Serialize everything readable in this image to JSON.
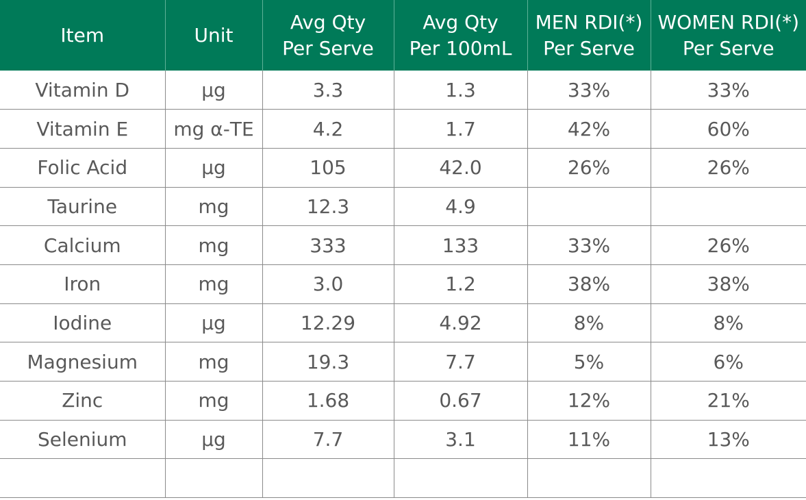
{
  "table": {
    "headers": [
      [
        "Item"
      ],
      [
        "Unit"
      ],
      [
        "Avg Qty",
        "Per Serve"
      ],
      [
        "Avg Qty",
        "Per 100mL"
      ],
      [
        "MEN RDI(*)",
        "Per Serve"
      ],
      [
        "WOMEN RDI(*)",
        "Per Serve"
      ]
    ],
    "rows": [
      [
        "Vitamin D",
        "µg",
        "3.3",
        "1.3",
        "33%",
        "33%"
      ],
      [
        "Vitamin E",
        "mg α-TE",
        "4.2",
        "1.7",
        "42%",
        "60%"
      ],
      [
        "Folic Acid",
        "µg",
        "105",
        "42.0",
        "26%",
        "26%"
      ],
      [
        "Taurine",
        "mg",
        "12.3",
        "4.9",
        "",
        ""
      ],
      [
        "Calcium",
        "mg",
        "333",
        "133",
        "33%",
        "26%"
      ],
      [
        "Iron",
        "mg",
        "3.0",
        "1.2",
        "38%",
        "38%"
      ],
      [
        "Iodine",
        "µg",
        "12.29",
        "4.92",
        "8%",
        "8%"
      ],
      [
        "Magnesium",
        "mg",
        "19.3",
        "7.7",
        "5%",
        "6%"
      ],
      [
        "Zinc",
        "mg",
        "1.68",
        "0.67",
        "12%",
        "21%"
      ],
      [
        "Selenium",
        "µg",
        "7.7",
        "3.1",
        "11%",
        "13%"
      ],
      [
        "",
        "",
        "",
        "",
        "",
        ""
      ]
    ]
  },
  "colors": {
    "header_bg": "#007a58",
    "header_text": "#ffffff",
    "cell_text": "#595959",
    "grid_line": "#8a8a8a"
  }
}
